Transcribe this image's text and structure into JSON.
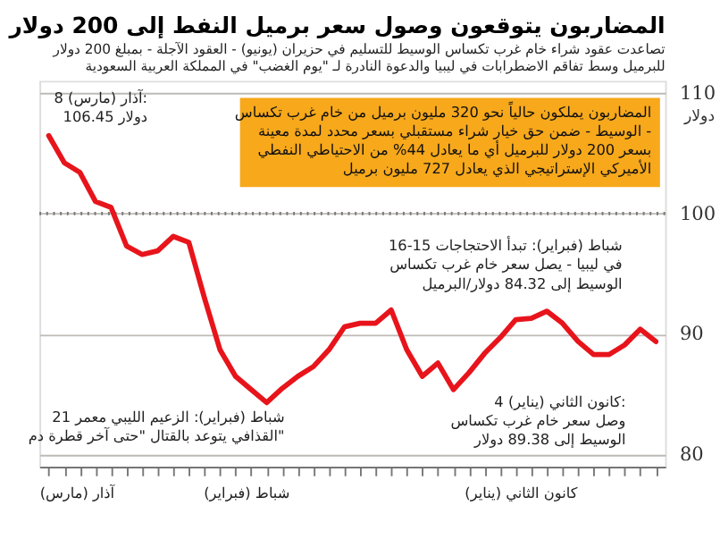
{
  "chart_data": {
    "type": "line",
    "title": "المضاربون يتوقعون وصول سعر برميل النفط إلى 200 دولار",
    "subtitle": "تصاعدت عقود شراء خام غرب تكساس الوسيط للتسليم في حزيران (يونيو) - العقود الآجلة - بمبلغ 200 دولار للبرميل وسط تفاقم الاضطرابات في ليبيا والدعوة النادرة لـ \"يوم الغضب\" في المملكة العربية السعودية",
    "ylabel": "دولار",
    "categories": [
      null,
      null,
      null,
      null,
      null,
      null,
      null,
      null,
      null,
      null,
      null,
      null,
      null,
      null,
      null,
      null,
      null,
      null,
      null,
      null,
      null,
      null,
      null,
      null,
      null,
      null,
      null,
      null,
      null,
      null,
      null,
      null,
      null,
      null,
      null,
      null,
      null,
      null,
      null,
      null
    ],
    "series": [
      {
        "color": "#e8141b",
        "line_style": "solid",
        "values": [
          106.45,
          104.2,
          103.4,
          101.0,
          100.5,
          97.3,
          96.6,
          96.9,
          98.1,
          97.6,
          93.0,
          88.7,
          86.5,
          85.4,
          84.32,
          85.5,
          86.5,
          87.3,
          88.7,
          90.6,
          90.9,
          90.9,
          92.0,
          88.7,
          86.5,
          87.6,
          85.4,
          86.8,
          88.4,
          89.7,
          91.2,
          91.3,
          91.9,
          90.9,
          89.4,
          88.3,
          88.3,
          89.1,
          90.4,
          89.38
        ]
      }
    ],
    "ylim": [
      79,
      111
    ],
    "yticks": [
      80,
      90,
      100,
      110
    ],
    "grid": "y",
    "marker": "none",
    "ref_lines": [
      {
        "axis": "y",
        "value": 100,
        "line_style": "dotted",
        "color": "#777777"
      }
    ],
    "annotations": [
      "8 آذار (مارس): 106.45 دولار",
      "المضاربون يملكون حالياً نحو 320 مليون برميل من خام غرب تكساس الوسيط - ضمن حق خيار شراء مستقبلي بسعر محدد لمدة معينة - بسعر 200 دولار للبرميل أي ما يعادل 44% من الاحتياطي النفطي الأميركي الإستراتيجي الذي يعادل 727 مليون برميل",
      "16-15 شباط (فبراير): تبدأ الاحتجاجات في ليبيا - يصل سعر خام غرب تكساس الوسيط إلى 84.32 دولار/البرميل",
      "21 شباط (فبراير): الزعيم الليبي معمر القذافي يتوعد بالقتال \"حتى آخر قطرة دم\"",
      "4 كانون الثاني (يناير): وصل سعر خام غرب تكساس الوسيط إلى 89.38 دولار",
      "آذار (مارس)",
      "شباط (فبراير)",
      "كانون الثاني (يناير)"
    ]
  }
}
